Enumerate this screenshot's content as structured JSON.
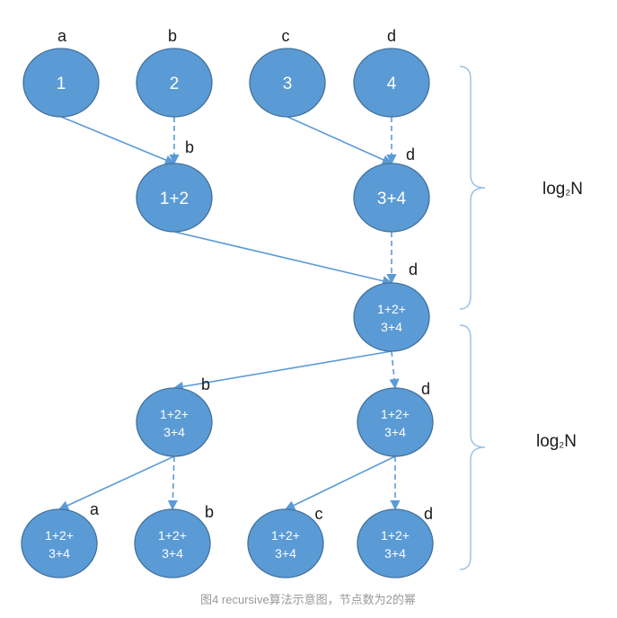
{
  "nodes": [
    {
      "lines": [
        "1"
      ],
      "label": "a"
    },
    {
      "lines": [
        "2"
      ],
      "label": "b"
    },
    {
      "lines": [
        "3"
      ],
      "label": "c"
    },
    {
      "lines": [
        "4"
      ],
      "label": "d"
    },
    {
      "lines": [
        "1+2"
      ],
      "label": "b"
    },
    {
      "lines": [
        "3+4"
      ],
      "label": "d"
    },
    {
      "lines": [
        "1+2+",
        "3+4"
      ],
      "label": "d"
    },
    {
      "lines": [
        "1+2+",
        "3+4"
      ],
      "label": "b"
    },
    {
      "lines": [
        "1+2+",
        "3+4"
      ],
      "label": "d"
    },
    {
      "lines": [
        "1+2+",
        "3+4"
      ],
      "label": "a"
    },
    {
      "lines": [
        "1+2+",
        "3+4"
      ],
      "label": "b"
    },
    {
      "lines": [
        "1+2+",
        "3+4"
      ],
      "label": "c"
    },
    {
      "lines": [
        "1+2+",
        "3+4"
      ],
      "label": "d"
    }
  ],
  "edges": [
    {
      "from": 0,
      "to": 4,
      "style": "solid"
    },
    {
      "from": 1,
      "to": 4,
      "style": "dashed"
    },
    {
      "from": 2,
      "to": 5,
      "style": "solid"
    },
    {
      "from": 3,
      "to": 5,
      "style": "dashed"
    },
    {
      "from": 4,
      "to": 6,
      "style": "solid"
    },
    {
      "from": 5,
      "to": 6,
      "style": "dashed"
    },
    {
      "from": 6,
      "to": 7,
      "style": "solid"
    },
    {
      "from": 6,
      "to": 8,
      "style": "dashed"
    },
    {
      "from": 7,
      "to": 9,
      "style": "solid"
    },
    {
      "from": 7,
      "to": 10,
      "style": "dashed"
    },
    {
      "from": 8,
      "to": 11,
      "style": "solid"
    },
    {
      "from": 8,
      "to": 12,
      "style": "dashed"
    }
  ],
  "braces": [
    {
      "label": "log₂N"
    },
    {
      "label": "log₂N"
    }
  ],
  "caption": "图4 recursive算法示意图，节点数为2的幂",
  "colors": {
    "node_fill": "#5b9bd5",
    "node_stroke": "#41719c",
    "edge": "#5b9bd5",
    "brace": "#9dc3e6",
    "label": "#1a1a1a",
    "caption": "#999999"
  }
}
